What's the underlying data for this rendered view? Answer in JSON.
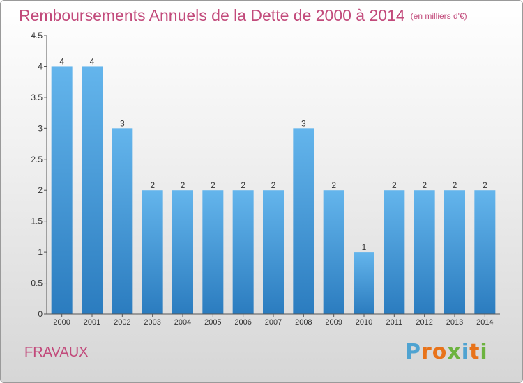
{
  "title": "Remboursements Annuels de la Dette de 2000 à 2014",
  "subtitle": "(en milliers d'€)",
  "commune": "FRAVAUX",
  "logo": {
    "letters": [
      "P",
      "r",
      "o",
      "x",
      "i",
      "t",
      "i"
    ],
    "colors": [
      "#4fa3d1",
      "#e8731a",
      "#e8731a",
      "#6cb33f",
      "#4fa3d1",
      "#e8731a",
      "#6cb33f"
    ]
  },
  "colors": {
    "bar_top": "#64b5ec",
    "bar_bottom": "#2b7cbf",
    "title": "#c24a7b"
  },
  "chart_data": {
    "type": "bar",
    "title": "Remboursements Annuels de la Dette de 2000 à 2014",
    "subtitle": "(en milliers d'€)",
    "xlabel": "",
    "ylabel": "",
    "categories": [
      "2000",
      "2001",
      "2002",
      "2003",
      "2004",
      "2005",
      "2006",
      "2007",
      "2008",
      "2009",
      "2010",
      "2011",
      "2012",
      "2013",
      "2014"
    ],
    "values": [
      4,
      4,
      3,
      2,
      2,
      2,
      2,
      2,
      3,
      2,
      1,
      2,
      2,
      2,
      2
    ],
    "data_labels": [
      "4",
      "4",
      "3",
      "2",
      "2",
      "2",
      "2",
      "2",
      "3",
      "2",
      "1",
      "2",
      "2",
      "2",
      "2"
    ],
    "ylim": [
      0,
      4.5
    ],
    "yticks": [
      "0",
      "0.5",
      "1",
      "1.5",
      "2",
      "2.5",
      "3",
      "3.5",
      "4",
      "4.5"
    ],
    "grid": false,
    "legend": "none"
  }
}
